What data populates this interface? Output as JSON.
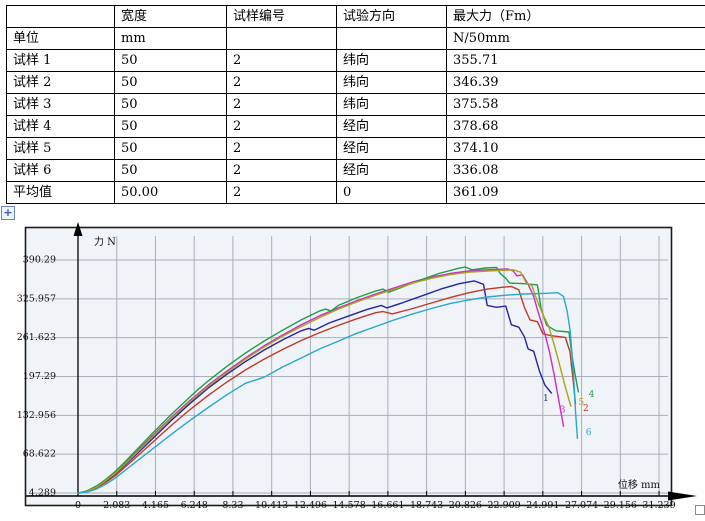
{
  "table": {
    "columns": [
      "",
      "宽度",
      "试样编号",
      "试验方向",
      "最大力（Fm）"
    ],
    "rows": [
      [
        "单位",
        "mm",
        "",
        "",
        "N/50mm"
      ],
      [
        "试样 1",
        "50",
        "2",
        "纬向",
        "355.71"
      ],
      [
        "试样 2",
        "50",
        "2",
        "纬向",
        "346.39"
      ],
      [
        "试样 3",
        "50",
        "2",
        "纬向",
        "375.58"
      ],
      [
        "试样 4",
        "50",
        "2",
        "经向",
        "378.68"
      ],
      [
        "试样 5",
        "50",
        "2",
        "经向",
        "374.10"
      ],
      [
        "试样 6",
        "50",
        "2",
        "经向",
        "336.08"
      ],
      [
        "平均值",
        "50.00",
        "2",
        "0",
        "361.09"
      ]
    ]
  },
  "icons": {
    "anchor_glyph": "+"
  },
  "chart_data": {
    "type": "line",
    "title": "",
    "ylabel": "力 N",
    "xlabel": "位移 mm",
    "grid": true,
    "legend_position": "curve-end-labels",
    "xlim": [
      0,
      32.5
    ],
    "ylim": [
      0,
      415
    ],
    "x_ticks": [
      "0",
      "2.083",
      "4.165",
      "6.248",
      "8.33",
      "10.413",
      "12.496",
      "14.578",
      "16.661",
      "18.743",
      "20.826",
      "22.909",
      "24.991",
      "27.074",
      "29.156",
      "31.239"
    ],
    "y_ticks": [
      "4.289",
      "68.622",
      "132.956",
      "197.29",
      "261.623",
      "325.957",
      "390.29"
    ],
    "series": [
      {
        "name": "1",
        "color": "#2424aa",
        "max_force": 355.71,
        "points": [
          [
            0,
            4
          ],
          [
            0.5,
            7
          ],
          [
            1,
            14
          ],
          [
            1.5,
            24
          ],
          [
            2,
            36
          ],
          [
            3,
            64
          ],
          [
            4,
            94
          ],
          [
            5,
            124
          ],
          [
            6,
            152
          ],
          [
            7,
            178
          ],
          [
            8,
            201
          ],
          [
            9,
            222
          ],
          [
            10,
            241
          ],
          [
            11,
            258
          ],
          [
            12,
            273
          ],
          [
            12.4,
            277
          ],
          [
            12.7,
            274
          ],
          [
            13.5,
            286
          ],
          [
            14.5,
            297
          ],
          [
            15.5,
            308
          ],
          [
            16.3,
            315
          ],
          [
            16.6,
            311
          ],
          [
            17.5,
            320
          ],
          [
            18.5,
            331
          ],
          [
            19.5,
            342
          ],
          [
            20.5,
            351
          ],
          [
            21.3,
            355.7
          ],
          [
            21.8,
            350
          ],
          [
            22,
            315
          ],
          [
            22.5,
            312
          ],
          [
            23,
            314
          ],
          [
            23.3,
            283
          ],
          [
            23.7,
            279
          ],
          [
            24,
            263
          ],
          [
            24.2,
            243
          ],
          [
            24.5,
            239
          ],
          [
            24.8,
            207
          ],
          [
            25.1,
            183
          ],
          [
            25.45,
            170
          ]
        ]
      },
      {
        "name": "2",
        "color": "#c23828",
        "max_force": 346.39,
        "points": [
          [
            0,
            4
          ],
          [
            0.5,
            7
          ],
          [
            1,
            13
          ],
          [
            1.5,
            22
          ],
          [
            2,
            33
          ],
          [
            3,
            60
          ],
          [
            4,
            88
          ],
          [
            5,
            116
          ],
          [
            6,
            142
          ],
          [
            7,
            166
          ],
          [
            8,
            188
          ],
          [
            9,
            208
          ],
          [
            10,
            226
          ],
          [
            11,
            242
          ],
          [
            12,
            257
          ],
          [
            13,
            270
          ],
          [
            14,
            282
          ],
          [
            15,
            293
          ],
          [
            16,
            303
          ],
          [
            16.4,
            305
          ],
          [
            16.9,
            301
          ],
          [
            18,
            310
          ],
          [
            19,
            319
          ],
          [
            20,
            328
          ],
          [
            21,
            336
          ],
          [
            22,
            342
          ],
          [
            22.8,
            345
          ],
          [
            23.3,
            346.4
          ],
          [
            23.7,
            341
          ],
          [
            24,
            312
          ],
          [
            24.3,
            291
          ],
          [
            24.7,
            288
          ],
          [
            25,
            268
          ],
          [
            25.4,
            265
          ],
          [
            26.2,
            262
          ],
          [
            26.45,
            238
          ],
          [
            26.6,
            196
          ],
          [
            26.75,
            152
          ]
        ]
      },
      {
        "name": "3",
        "color": "#cc2cc8",
        "max_force": 375.58,
        "points": [
          [
            0,
            4
          ],
          [
            0.5,
            8
          ],
          [
            1,
            15
          ],
          [
            1.5,
            26
          ],
          [
            2,
            39
          ],
          [
            3,
            68
          ],
          [
            4,
            99
          ],
          [
            5,
            129
          ],
          [
            6,
            157
          ],
          [
            7,
            183
          ],
          [
            8,
            206
          ],
          [
            9,
            228
          ],
          [
            10,
            248
          ],
          [
            11,
            266
          ],
          [
            12,
            283
          ],
          [
            13,
            298
          ],
          [
            14,
            311
          ],
          [
            15,
            323
          ],
          [
            16,
            334
          ],
          [
            17,
            344
          ],
          [
            18,
            354
          ],
          [
            19,
            362
          ],
          [
            20,
            368
          ],
          [
            21,
            372
          ],
          [
            22,
            374
          ],
          [
            23.1,
            375.6
          ],
          [
            23.4,
            372
          ],
          [
            23.6,
            364
          ],
          [
            23.9,
            366
          ],
          [
            24.2,
            350
          ],
          [
            24.5,
            330
          ],
          [
            24.7,
            308
          ],
          [
            24.9,
            288
          ],
          [
            25.1,
            268
          ],
          [
            25.35,
            238
          ],
          [
            25.6,
            200
          ],
          [
            25.85,
            158
          ],
          [
            26,
            132
          ],
          [
            26.1,
            115
          ]
        ]
      },
      {
        "name": "4",
        "color": "#18a048",
        "max_force": 378.68,
        "points": [
          [
            0,
            4
          ],
          [
            0.5,
            8
          ],
          [
            1,
            16
          ],
          [
            1.5,
            27
          ],
          [
            2,
            40
          ],
          [
            2.5,
            55
          ],
          [
            3,
            71
          ],
          [
            4,
            103
          ],
          [
            5,
            134
          ],
          [
            6,
            163
          ],
          [
            6.5,
            177
          ],
          [
            7,
            190
          ],
          [
            8,
            214
          ],
          [
            9,
            236
          ],
          [
            10,
            256
          ],
          [
            11,
            274
          ],
          [
            12,
            291
          ],
          [
            13,
            306
          ],
          [
            13.3,
            309
          ],
          [
            13.6,
            306
          ],
          [
            14,
            315
          ],
          [
            15,
            328
          ],
          [
            16,
            339
          ],
          [
            16.4,
            342
          ],
          [
            16.7,
            337
          ],
          [
            17.4,
            345
          ],
          [
            18.4,
            357
          ],
          [
            19.4,
            368
          ],
          [
            20.4,
            376
          ],
          [
            20.8,
            378.7
          ],
          [
            21.2,
            374
          ],
          [
            21.9,
            377
          ],
          [
            22.5,
            378
          ],
          [
            22.7,
            368
          ],
          [
            23,
            360
          ],
          [
            23.2,
            352
          ],
          [
            24,
            351
          ],
          [
            24.7,
            349
          ],
          [
            24.9,
            310
          ],
          [
            25.2,
            282
          ],
          [
            25.7,
            273
          ],
          [
            26.4,
            271
          ],
          [
            26.55,
            235
          ],
          [
            26.7,
            205
          ],
          [
            26.9,
            172
          ]
        ]
      },
      {
        "name": "5",
        "color": "#b0a01c",
        "max_force": 374.1,
        "points": [
          [
            0,
            4
          ],
          [
            0.5,
            7
          ],
          [
            1,
            14
          ],
          [
            1.5,
            25
          ],
          [
            2,
            37
          ],
          [
            3,
            66
          ],
          [
            4,
            97
          ],
          [
            5,
            127
          ],
          [
            6,
            155
          ],
          [
            7,
            181
          ],
          [
            8,
            204
          ],
          [
            9,
            226
          ],
          [
            10,
            246
          ],
          [
            11,
            264
          ],
          [
            12,
            280
          ],
          [
            13,
            295
          ],
          [
            14,
            309
          ],
          [
            15,
            321
          ],
          [
            16,
            332
          ],
          [
            17,
            342
          ],
          [
            18,
            352
          ],
          [
            19,
            360
          ],
          [
            20,
            366
          ],
          [
            21,
            370
          ],
          [
            22,
            372
          ],
          [
            23.4,
            374.1
          ],
          [
            23.8,
            370
          ],
          [
            24.1,
            352
          ],
          [
            24.4,
            348
          ],
          [
            24.7,
            322
          ],
          [
            25,
            300
          ],
          [
            25.3,
            281
          ],
          [
            25.6,
            250
          ],
          [
            25.9,
            216
          ],
          [
            26.2,
            180
          ],
          [
            26.5,
            148
          ]
        ]
      },
      {
        "name": "6",
        "color": "#28a8cc",
        "max_force": 336.08,
        "points": [
          [
            0,
            4
          ],
          [
            0.5,
            6
          ],
          [
            1,
            11
          ],
          [
            1.5,
            19
          ],
          [
            2,
            29
          ],
          [
            3,
            53
          ],
          [
            4,
            77
          ],
          [
            5,
            101
          ],
          [
            6,
            124
          ],
          [
            7,
            146
          ],
          [
            8,
            167
          ],
          [
            9,
            186
          ],
          [
            10,
            196
          ],
          [
            11,
            213
          ],
          [
            12,
            228
          ],
          [
            13,
            243
          ],
          [
            14,
            256
          ],
          [
            15,
            269
          ],
          [
            16,
            280
          ],
          [
            17,
            291
          ],
          [
            18,
            301
          ],
          [
            19,
            310
          ],
          [
            20,
            318
          ],
          [
            21,
            324
          ],
          [
            22,
            329
          ],
          [
            23,
            332
          ],
          [
            24,
            334
          ],
          [
            25,
            335
          ],
          [
            25.8,
            336.1
          ],
          [
            26.1,
            330
          ],
          [
            26.3,
            305
          ],
          [
            26.45,
            275
          ],
          [
            26.55,
            240
          ],
          [
            26.65,
            195
          ],
          [
            26.75,
            140
          ],
          [
            26.85,
            95
          ]
        ]
      }
    ],
    "end_labels": [
      {
        "text": "1",
        "x": 25.0,
        "y": 157,
        "color": "#2424aa"
      },
      {
        "text": "3",
        "x": 25.9,
        "y": 138,
        "color": "#cc2cc8"
      },
      {
        "text": "5",
        "x": 26.9,
        "y": 150,
        "color": "#b0a01c"
      },
      {
        "text": "2",
        "x": 27.15,
        "y": 140,
        "color": "#c23828"
      },
      {
        "text": "4",
        "x": 27.45,
        "y": 163,
        "color": "#18a048"
      },
      {
        "text": "6",
        "x": 27.3,
        "y": 100,
        "color": "#28a8cc"
      }
    ],
    "plot_bg": "#f0f3f7",
    "grid_color": "#a9afb8",
    "border_color": "#1c1c1c"
  }
}
